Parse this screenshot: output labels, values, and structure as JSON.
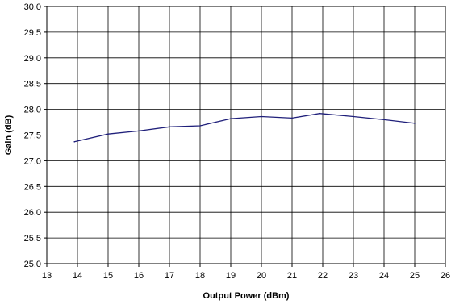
{
  "chart_data": {
    "type": "line",
    "xlabel": "Output Power (dBm)",
    "ylabel": "Gain (dB)",
    "xlim": [
      13,
      26
    ],
    "ylim": [
      25.0,
      30.0
    ],
    "x_ticks": [
      "13",
      "14",
      "15",
      "16",
      "17",
      "18",
      "19",
      "20",
      "21",
      "22",
      "23",
      "24",
      "25",
      "26"
    ],
    "y_ticks": [
      "25.0",
      "25.5",
      "26.0",
      "26.5",
      "27.0",
      "27.5",
      "28.0",
      "28.5",
      "29.0",
      "29.5",
      "30.0"
    ],
    "grid": true,
    "series": [
      {
        "color": "#1f1f7a",
        "x": [
          13.9,
          15.0,
          16.0,
          17.0,
          18.0,
          19.0,
          20.0,
          21.0,
          21.9,
          23.0,
          24.0,
          25.0
        ],
        "y": [
          27.37,
          27.52,
          27.58,
          27.66,
          27.68,
          27.82,
          27.86,
          27.83,
          27.92,
          27.86,
          27.8,
          27.73
        ]
      }
    ]
  }
}
